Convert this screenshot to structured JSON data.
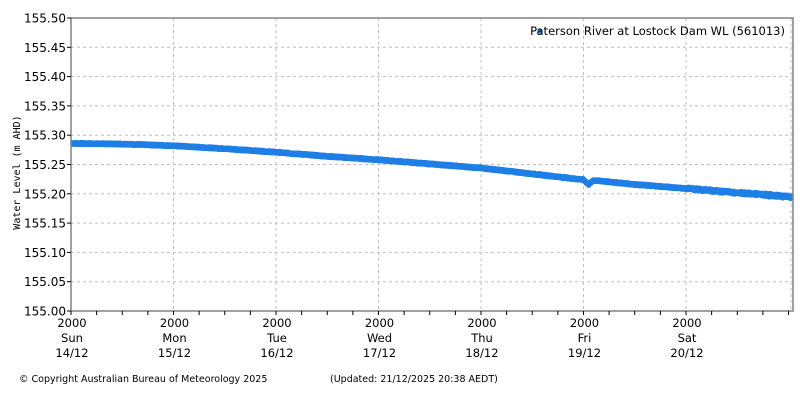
{
  "chart_data": {
    "type": "scatter",
    "title": "",
    "xlabel": "",
    "ylabel": "Water Level (m AHD)",
    "ylim": [
      155.0,
      155.5
    ],
    "yticks": [
      "155.00",
      "155.05",
      "155.10",
      "155.15",
      "155.20",
      "155.25",
      "155.30",
      "155.35",
      "155.40",
      "155.45",
      "155.50"
    ],
    "xticks": [
      {
        "time": "2000",
        "day": "Sun",
        "date": "14/12"
      },
      {
        "time": "2000",
        "day": "Mon",
        "date": "15/12"
      },
      {
        "time": "2000",
        "day": "Tue",
        "date": "16/12"
      },
      {
        "time": "2000",
        "day": "Wed",
        "date": "17/12"
      },
      {
        "time": "2000",
        "day": "Thu",
        "date": "18/12"
      },
      {
        "time": "2000",
        "day": "Fri",
        "date": "19/12"
      },
      {
        "time": "2000",
        "day": "Sat",
        "date": "20/12"
      }
    ],
    "xrange_days": 7.05,
    "grid": true,
    "legend_position": "top-right",
    "series": [
      {
        "name": "Paterson River at Lostock Dam WL (561013)",
        "color": "#1e7fe6",
        "x_days": [
          0.0,
          0.5,
          1.0,
          1.5,
          2.0,
          2.5,
          3.0,
          3.5,
          4.0,
          4.5,
          5.0,
          5.05,
          5.1,
          5.5,
          6.0,
          6.5,
          7.0,
          7.05
        ],
        "values": [
          155.286,
          155.285,
          155.282,
          155.277,
          155.271,
          155.264,
          155.258,
          155.251,
          155.244,
          155.234,
          155.224,
          155.216,
          155.223,
          155.216,
          155.209,
          155.202,
          155.195,
          155.193
        ]
      }
    ]
  },
  "footer": {
    "copyright": "© Copyright Australian Bureau of Meteorology 2025",
    "updated": "(Updated: 21/12/2025 20:38 AEDT)"
  }
}
